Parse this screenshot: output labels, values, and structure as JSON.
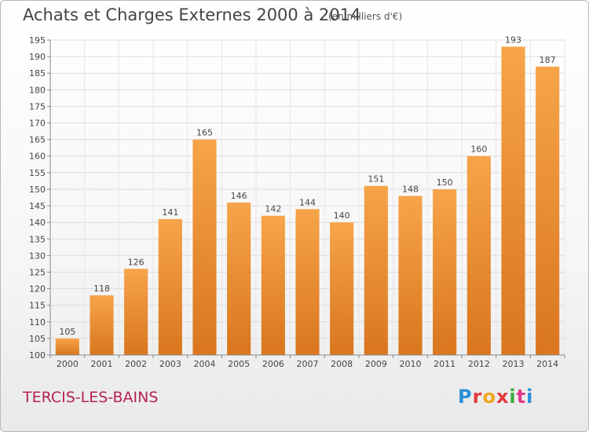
{
  "header": {
    "title": "Achats et Charges Externes 2000 à 2014",
    "subtitle": "(en milliers d'€)"
  },
  "commune": "TERCIS-LES-BAINS",
  "logo": {
    "letters": [
      "P",
      "r",
      "o",
      "x",
      "i",
      "t",
      "i"
    ],
    "colors": [
      "#2a8fd6",
      "#e23a3a",
      "#f0a820",
      "#e23a3a",
      "#3aaa3a",
      "#e23a8a",
      "#2a8fd6"
    ]
  },
  "colors": {
    "bar_light": "#f7a44a",
    "bar_dark": "#d9761e",
    "commune": "#b5225a"
  },
  "chart_data": {
    "type": "bar",
    "title": "Achats et Charges Externes 2000 à 2014",
    "subtitle": "(en milliers d'€)",
    "xlabel": "",
    "ylabel": "",
    "categories": [
      "2000",
      "2001",
      "2002",
      "2003",
      "2004",
      "2005",
      "2006",
      "2007",
      "2008",
      "2009",
      "2010",
      "2011",
      "2012",
      "2013",
      "2014"
    ],
    "values": [
      105,
      118,
      126,
      141,
      165,
      146,
      142,
      144,
      140,
      151,
      148,
      150,
      160,
      193,
      187
    ],
    "ylim": [
      100,
      195
    ],
    "yticks": [
      100,
      105,
      110,
      115,
      120,
      125,
      130,
      135,
      140,
      145,
      150,
      155,
      160,
      165,
      170,
      175,
      180,
      185,
      190,
      195
    ],
    "grid": true
  }
}
